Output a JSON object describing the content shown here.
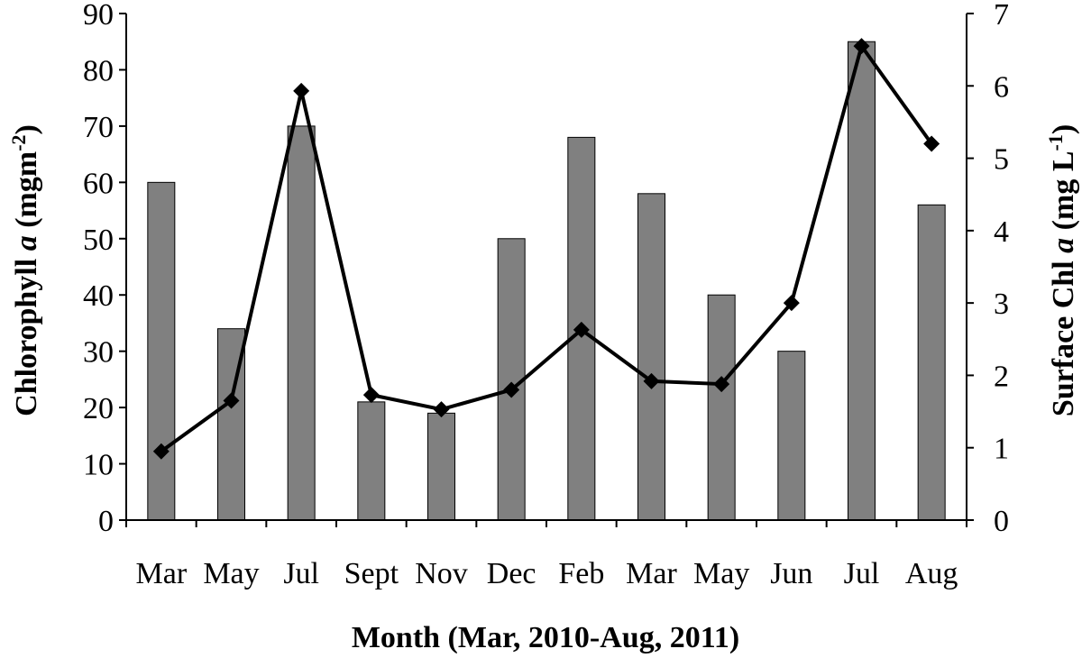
{
  "chart_data": {
    "type": "bar",
    "categories": [
      "Mar",
      "May",
      "Jul",
      "Sept",
      "Nov",
      "Dec",
      "Feb",
      "Mar",
      "May",
      "Jun",
      "Jul",
      "Aug"
    ],
    "series": [
      {
        "type": "bar",
        "axis": "left",
        "values": [
          60,
          34,
          70,
          21,
          19,
          50,
          68,
          58,
          40,
          30,
          85,
          56
        ],
        "color": "#808080"
      },
      {
        "type": "line",
        "axis": "right",
        "marker": "diamond",
        "values": [
          0.95,
          1.65,
          5.93,
          1.73,
          1.53,
          1.8,
          2.63,
          1.92,
          1.88,
          3.0,
          6.55,
          5.2
        ],
        "color": "#000000"
      }
    ],
    "xlabel": "Month (Mar, 2010-Aug, 2011)",
    "ylabel_left": {
      "prefix": "Chlorophyll ",
      "italic": "a",
      "unit": " (mgm",
      "sup": "-2",
      "close": ")"
    },
    "ylabel_right": {
      "prefix": "Surface Chl ",
      "italic": "a",
      "unit": " (mg L",
      "sup": "-1",
      "close": ")"
    },
    "ylim_left": [
      0,
      90
    ],
    "ylim_right": [
      0,
      7
    ],
    "yticks_left": [
      "0",
      "10",
      "20",
      "30",
      "40",
      "50",
      "60",
      "70",
      "80",
      "90"
    ],
    "yticks_right": [
      "0",
      "1",
      "2",
      "3",
      "4",
      "5",
      "6",
      "7"
    ],
    "grid": false,
    "legend": "none"
  }
}
